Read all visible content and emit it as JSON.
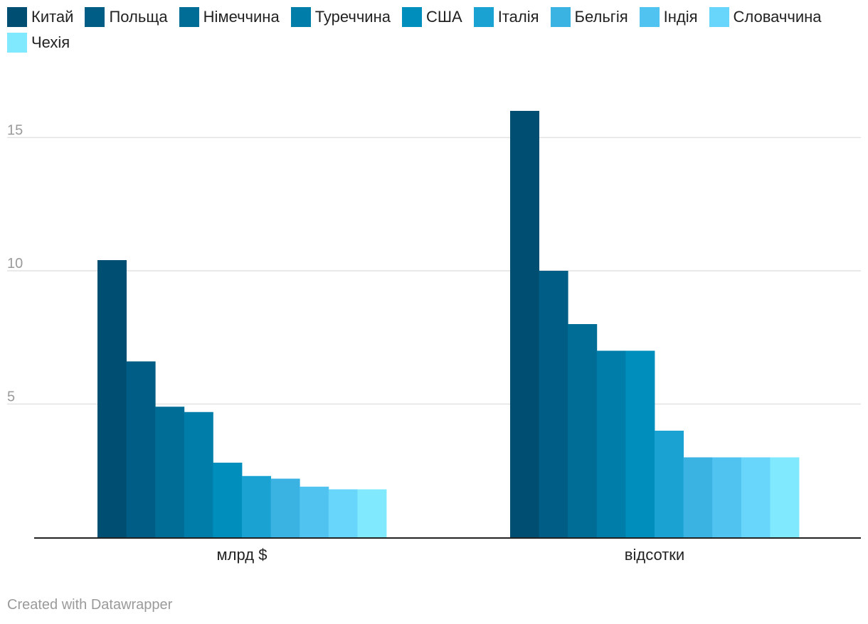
{
  "chart_data": {
    "type": "bar",
    "categories": [
      "млрд $",
      "відсотки"
    ],
    "series": [
      {
        "name": "Китай",
        "color": "#004e72",
        "values": [
          10.4,
          16
        ]
      },
      {
        "name": "Польща",
        "color": "#005d85",
        "values": [
          6.6,
          10
        ]
      },
      {
        "name": "Німеччина",
        "color": "#006d97",
        "values": [
          4.9,
          8
        ]
      },
      {
        "name": "Туреччина",
        "color": "#007ea9",
        "values": [
          4.7,
          7
        ]
      },
      {
        "name": "США",
        "color": "#008fbd",
        "values": [
          2.8,
          7
        ]
      },
      {
        "name": "Італія",
        "color": "#1aa2d2",
        "values": [
          2.3,
          4
        ]
      },
      {
        "name": "Бельгія",
        "color": "#3ab3e2",
        "values": [
          2.2,
          3
        ]
      },
      {
        "name": "Індія",
        "color": "#51c3f1",
        "values": [
          1.9,
          3
        ]
      },
      {
        "name": "Словаччина",
        "color": "#68d5fb",
        "values": [
          1.8,
          3
        ]
      },
      {
        "name": "Чехія",
        "color": "#80e9fe",
        "values": [
          1.8,
          3
        ]
      }
    ],
    "y_ticks": [
      5,
      10,
      15
    ],
    "y_tick_labels": [
      "5",
      "10",
      "15"
    ],
    "ylim": [
      0,
      17
    ],
    "grid": true,
    "legend": "top"
  },
  "footer": {
    "credit": "Created with Datawrapper"
  }
}
